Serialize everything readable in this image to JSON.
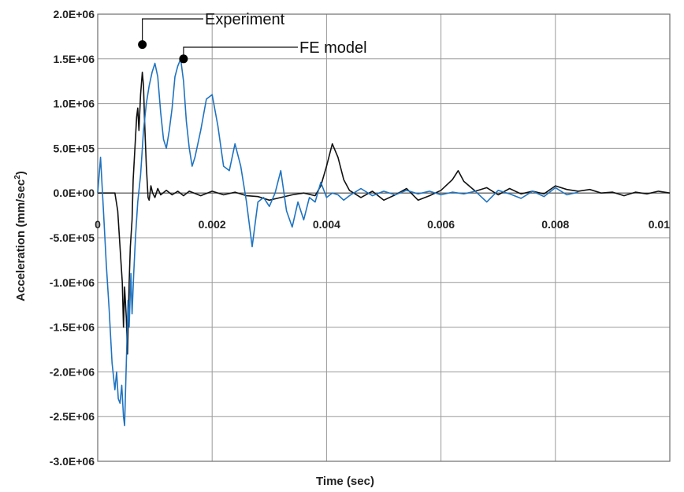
{
  "chart_data": {
    "type": "line",
    "title": "",
    "xlabel": "Time (sec)",
    "ylabel": "Acceleration (mm/sec",
    "ylabel_sup": "2",
    "ylabel_close": ")",
    "xlim": [
      0,
      0.01
    ],
    "ylim": [
      -3000000,
      2000000
    ],
    "x_ticks": [
      0,
      0.002,
      0.004,
      0.006,
      0.008,
      0.01
    ],
    "x_tick_labels": [
      "0",
      "0.002",
      "0.004",
      "0.006",
      "0.008",
      "0.01"
    ],
    "y_ticks": [
      2000000,
      1500000,
      1000000,
      500000,
      0,
      -500000,
      -1000000,
      -1500000,
      -2000000,
      -2500000,
      -3000000
    ],
    "y_tick_labels": [
      "2.0E+06",
      "1.5E+06",
      "1.0E+06",
      "5.0E+05",
      "0.0E+00",
      "-5.0E+05",
      "-1.0E+06",
      "-1.5E+06",
      "-2.0E+06",
      "-2.5E+06",
      "-3.0E+06"
    ],
    "grid": true,
    "series": [
      {
        "name": "Experiment",
        "color": "#111111",
        "points": [
          [
            0,
            0
          ],
          [
            0.0003,
            0
          ],
          [
            0.00035,
            -200000
          ],
          [
            0.0004,
            -700000
          ],
          [
            0.00043,
            -1000000
          ],
          [
            0.00045,
            -1500000
          ],
          [
            0.00047,
            -1050000
          ],
          [
            0.0005,
            -1400000
          ],
          [
            0.00052,
            -1800000
          ],
          [
            0.00055,
            -1000000
          ],
          [
            0.00057,
            -600000
          ],
          [
            0.0006,
            -300000
          ],
          [
            0.00062,
            150000
          ],
          [
            0.00065,
            500000
          ],
          [
            0.00068,
            850000
          ],
          [
            0.0007,
            950000
          ],
          [
            0.00072,
            700000
          ],
          [
            0.00075,
            1100000
          ],
          [
            0.00078,
            1350000
          ],
          [
            0.0008,
            1200000
          ],
          [
            0.00082,
            800000
          ],
          [
            0.00085,
            300000
          ],
          [
            0.00088,
            -50000
          ],
          [
            0.0009,
            -80000
          ],
          [
            0.00093,
            80000
          ],
          [
            0.00096,
            0
          ],
          [
            0.001,
            -50000
          ],
          [
            0.00105,
            50000
          ],
          [
            0.0011,
            -20000
          ],
          [
            0.0012,
            30000
          ],
          [
            0.0013,
            -20000
          ],
          [
            0.0014,
            20000
          ],
          [
            0.0015,
            -30000
          ],
          [
            0.0016,
            20000
          ],
          [
            0.0018,
            -30000
          ],
          [
            0.002,
            20000
          ],
          [
            0.0022,
            -20000
          ],
          [
            0.0024,
            10000
          ],
          [
            0.0026,
            -30000
          ],
          [
            0.0028,
            -40000
          ],
          [
            0.003,
            -80000
          ],
          [
            0.0032,
            -50000
          ],
          [
            0.0034,
            -20000
          ],
          [
            0.0036,
            0
          ],
          [
            0.0038,
            -30000
          ],
          [
            0.0039,
            80000
          ],
          [
            0.004,
            300000
          ],
          [
            0.0041,
            550000
          ],
          [
            0.0042,
            400000
          ],
          [
            0.0043,
            150000
          ],
          [
            0.0044,
            30000
          ],
          [
            0.0046,
            -50000
          ],
          [
            0.0048,
            20000
          ],
          [
            0.005,
            -80000
          ],
          [
            0.0052,
            -20000
          ],
          [
            0.0054,
            50000
          ],
          [
            0.0056,
            -80000
          ],
          [
            0.0058,
            -30000
          ],
          [
            0.006,
            30000
          ],
          [
            0.0062,
            150000
          ],
          [
            0.0063,
            250000
          ],
          [
            0.0064,
            130000
          ],
          [
            0.0066,
            20000
          ],
          [
            0.0068,
            60000
          ],
          [
            0.007,
            -20000
          ],
          [
            0.0072,
            50000
          ],
          [
            0.0074,
            -10000
          ],
          [
            0.0076,
            20000
          ],
          [
            0.0078,
            -10000
          ],
          [
            0.008,
            80000
          ],
          [
            0.0082,
            40000
          ],
          [
            0.0084,
            20000
          ],
          [
            0.0086,
            40000
          ],
          [
            0.0088,
            0
          ],
          [
            0.009,
            10000
          ],
          [
            0.0092,
            -30000
          ],
          [
            0.0094,
            10000
          ],
          [
            0.0096,
            -10000
          ],
          [
            0.0098,
            20000
          ],
          [
            0.01,
            0
          ]
        ]
      },
      {
        "name": "FE model",
        "color": "#1f73c0",
        "points": [
          [
            0,
            0
          ],
          [
            5e-05,
            400000
          ],
          [
            0.0001,
            -200000
          ],
          [
            0.00015,
            -800000
          ],
          [
            0.0002,
            -1300000
          ],
          [
            0.00025,
            -1900000
          ],
          [
            0.0003,
            -2200000
          ],
          [
            0.00033,
            -2000000
          ],
          [
            0.00036,
            -2300000
          ],
          [
            0.00039,
            -2350000
          ],
          [
            0.00042,
            -2150000
          ],
          [
            0.00045,
            -2500000
          ],
          [
            0.00047,
            -2600000
          ],
          [
            0.0005,
            -1900000
          ],
          [
            0.00053,
            -1200000
          ],
          [
            0.00055,
            -1500000
          ],
          [
            0.00058,
            -900000
          ],
          [
            0.0006,
            -1350000
          ],
          [
            0.00063,
            -900000
          ],
          [
            0.00066,
            -500000
          ],
          [
            0.0007,
            -100000
          ],
          [
            0.00075,
            200000
          ],
          [
            0.0008,
            700000
          ],
          [
            0.00085,
            1000000
          ],
          [
            0.0009,
            1200000
          ],
          [
            0.00095,
            1350000
          ],
          [
            0.001,
            1450000
          ],
          [
            0.00105,
            1300000
          ],
          [
            0.0011,
            900000
          ],
          [
            0.00115,
            600000
          ],
          [
            0.0012,
            500000
          ],
          [
            0.00125,
            700000
          ],
          [
            0.0013,
            950000
          ],
          [
            0.00135,
            1300000
          ],
          [
            0.0014,
            1420000
          ],
          [
            0.00145,
            1500000
          ],
          [
            0.0015,
            1250000
          ],
          [
            0.00155,
            800000
          ],
          [
            0.0016,
            500000
          ],
          [
            0.00165,
            300000
          ],
          [
            0.0017,
            400000
          ],
          [
            0.0018,
            700000
          ],
          [
            0.0019,
            1050000
          ],
          [
            0.002,
            1100000
          ],
          [
            0.0021,
            750000
          ],
          [
            0.0022,
            300000
          ],
          [
            0.0023,
            250000
          ],
          [
            0.0024,
            550000
          ],
          [
            0.0025,
            300000
          ],
          [
            0.0026,
            -100000
          ],
          [
            0.0027,
            -600000
          ],
          [
            0.0028,
            -100000
          ],
          [
            0.0029,
            -50000
          ],
          [
            0.003,
            -150000
          ],
          [
            0.0031,
            0
          ],
          [
            0.0032,
            250000
          ],
          [
            0.0033,
            -200000
          ],
          [
            0.0034,
            -380000
          ],
          [
            0.0035,
            -100000
          ],
          [
            0.0036,
            -300000
          ],
          [
            0.0037,
            -50000
          ],
          [
            0.0038,
            -100000
          ],
          [
            0.0039,
            120000
          ],
          [
            0.004,
            -50000
          ],
          [
            0.0041,
            0
          ],
          [
            0.0042,
            -20000
          ],
          [
            0.0043,
            -80000
          ],
          [
            0.0044,
            -30000
          ],
          [
            0.0046,
            50000
          ],
          [
            0.0048,
            -30000
          ],
          [
            0.005,
            20000
          ],
          [
            0.0052,
            -20000
          ],
          [
            0.0054,
            30000
          ],
          [
            0.0056,
            -10000
          ],
          [
            0.0058,
            20000
          ],
          [
            0.006,
            -20000
          ],
          [
            0.0062,
            10000
          ],
          [
            0.0064,
            -10000
          ],
          [
            0.0066,
            20000
          ],
          [
            0.0068,
            -100000
          ],
          [
            0.007,
            30000
          ],
          [
            0.0072,
            -10000
          ],
          [
            0.0074,
            -60000
          ],
          [
            0.0076,
            20000
          ],
          [
            0.0078,
            -40000
          ],
          [
            0.008,
            60000
          ],
          [
            0.0082,
            -20000
          ],
          [
            0.0084,
            10000
          ]
        ]
      }
    ],
    "annotations": [
      {
        "text": "Experiment",
        "series": 0,
        "x": 0.00078,
        "y": 1660000
      },
      {
        "text": "FE model",
        "series": 1,
        "x": 0.0015,
        "y": 1500000
      }
    ]
  }
}
